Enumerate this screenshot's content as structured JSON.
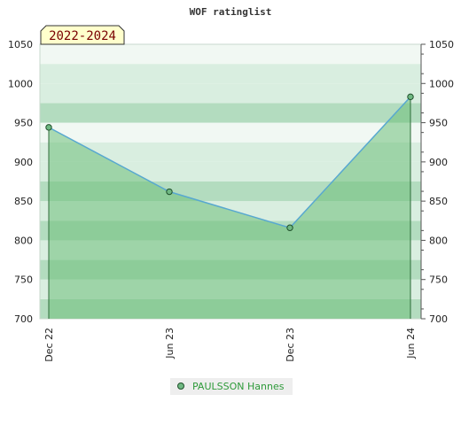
{
  "chart_data": {
    "type": "area",
    "title": "WOF ratinglist",
    "period_label": "2022-2024",
    "x": [
      "Dec 22",
      "Jun 23",
      "Dec 23",
      "Jun 24"
    ],
    "series": [
      {
        "name": "PAULSSON Hannes",
        "values": [
          944,
          862,
          816,
          983
        ]
      }
    ],
    "ylim": [
      700,
      1050
    ],
    "yticks": [
      700,
      750,
      800,
      850,
      900,
      950,
      1000,
      1050
    ],
    "ytick_labels": [
      "700",
      "750",
      "800",
      "850",
      "900",
      "950",
      "1000",
      "1050"
    ],
    "xlabel": "",
    "ylabel": "",
    "grid": true,
    "legend_position": "bottom-center",
    "colors": {
      "area_fill": "#6dbf7a",
      "line": "#58a8d0",
      "marker_fill": "#6fb882",
      "marker_stroke": "#1f4f2a",
      "band_dark": "#b3dcbf",
      "band_light": "#d9eee0",
      "band_lightest": "#f1f8f3",
      "period_bg": "#ffffcc",
      "period_text": "#7a0000",
      "legend_text": "#2e9a3a"
    }
  }
}
